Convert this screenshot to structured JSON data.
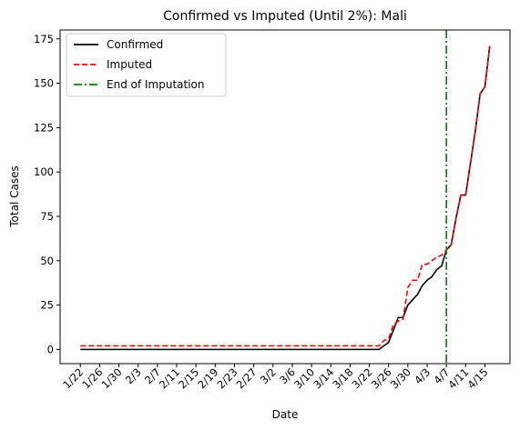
{
  "chart_data": {
    "type": "line",
    "title": "Confirmed vs Imputed (Until 2%): Mali",
    "xlabel": "Date",
    "ylabel": "Total Cases",
    "x": [
      "1/22",
      "1/23",
      "1/24",
      "1/25",
      "1/26",
      "1/27",
      "1/28",
      "1/29",
      "1/30",
      "1/31",
      "2/1",
      "2/2",
      "2/3",
      "2/4",
      "2/5",
      "2/6",
      "2/7",
      "2/8",
      "2/9",
      "2/10",
      "2/11",
      "2/12",
      "2/13",
      "2/14",
      "2/15",
      "2/16",
      "2/17",
      "2/18",
      "2/19",
      "2/20",
      "2/21",
      "2/22",
      "2/23",
      "2/24",
      "2/25",
      "2/26",
      "2/27",
      "2/28",
      "2/29",
      "3/1",
      "3/2",
      "3/3",
      "3/4",
      "3/5",
      "3/6",
      "3/7",
      "3/8",
      "3/9",
      "3/10",
      "3/11",
      "3/12",
      "3/13",
      "3/14",
      "3/15",
      "3/16",
      "3/17",
      "3/18",
      "3/19",
      "3/20",
      "3/21",
      "3/22",
      "3/23",
      "3/24",
      "3/25",
      "3/26",
      "3/27",
      "3/28",
      "3/29",
      "3/30",
      "3/31",
      "4/1",
      "4/2",
      "4/3",
      "4/4",
      "4/5",
      "4/6",
      "4/7",
      "4/8",
      "4/9",
      "4/10",
      "4/11",
      "4/12",
      "4/13",
      "4/14",
      "4/15",
      "4/16"
    ],
    "x_ticks": [
      "1/22",
      "1/26",
      "1/30",
      "2/3",
      "2/7",
      "2/11",
      "2/15",
      "2/19",
      "2/23",
      "2/27",
      "3/2",
      "3/6",
      "3/10",
      "3/14",
      "3/18",
      "3/22",
      "3/26",
      "3/30",
      "4/3",
      "4/7",
      "4/11",
      "4/15"
    ],
    "ylim": [
      -8,
      180
    ],
    "y_ticks": [
      0,
      25,
      50,
      75,
      100,
      125,
      150,
      175
    ],
    "series": [
      {
        "name": "Confirmed",
        "color": "#000000",
        "style": "solid",
        "values": [
          0,
          0,
          0,
          0,
          0,
          0,
          0,
          0,
          0,
          0,
          0,
          0,
          0,
          0,
          0,
          0,
          0,
          0,
          0,
          0,
          0,
          0,
          0,
          0,
          0,
          0,
          0,
          0,
          0,
          0,
          0,
          0,
          0,
          0,
          0,
          0,
          0,
          0,
          0,
          0,
          0,
          0,
          0,
          0,
          0,
          0,
          0,
          0,
          0,
          0,
          0,
          0,
          0,
          0,
          0,
          0,
          0,
          0,
          0,
          0,
          0,
          0,
          0,
          2,
          4,
          11,
          18,
          18,
          25,
          28,
          31,
          36,
          39,
          41,
          45,
          47,
          56,
          59,
          74,
          87,
          87,
          105,
          123,
          144,
          148,
          171
        ]
      },
      {
        "name": "Imputed",
        "color": "#ff0000",
        "style": "dashed",
        "values": [
          2,
          2,
          2,
          2,
          2,
          2,
          2,
          2,
          2,
          2,
          2,
          2,
          2,
          2,
          2,
          2,
          2,
          2,
          2,
          2,
          2,
          2,
          2,
          2,
          2,
          2,
          2,
          2,
          2,
          2,
          2,
          2,
          2,
          2,
          2,
          2,
          2,
          2,
          2,
          2,
          2,
          2,
          2,
          2,
          2,
          2,
          2,
          2,
          2,
          2,
          2,
          2,
          2,
          2,
          2,
          2,
          2,
          2,
          2,
          2,
          2,
          2,
          2,
          5,
          6,
          14,
          16,
          17,
          35,
          39,
          39,
          48,
          48,
          50,
          52,
          53,
          56,
          59,
          74,
          87,
          87,
          105,
          123,
          144,
          148,
          171
        ]
      }
    ],
    "vline": {
      "name": "End of Imputation",
      "x": "4/7",
      "color": "#008000",
      "style": "dashdot"
    },
    "legend_position": "upper-left",
    "grid": false
  }
}
